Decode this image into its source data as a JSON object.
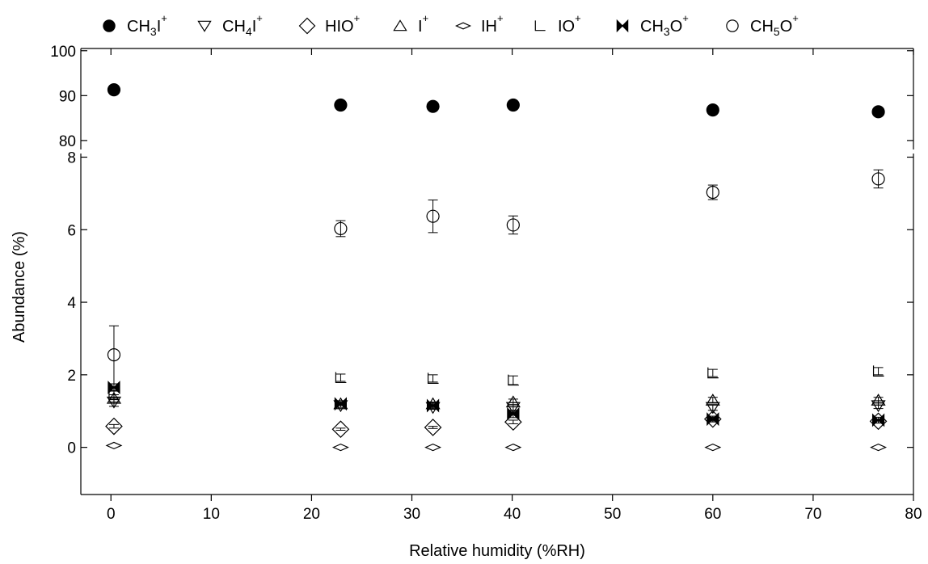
{
  "chart_data": {
    "type": "scatter",
    "xlabel": "Relative humidity (%RH)",
    "ylabel": "Abundance (%)",
    "xlim": [
      -3,
      80
    ],
    "x_ticks": [
      0,
      10,
      20,
      30,
      40,
      50,
      60,
      70,
      80
    ],
    "upper_panel": {
      "ylim": [
        78,
        100.5
      ],
      "y_ticks": [
        80,
        90,
        100
      ]
    },
    "lower_panel": {
      "ylim": [
        -1.3,
        8.1
      ],
      "y_ticks": [
        0,
        2,
        4,
        6,
        8
      ]
    },
    "grid": false,
    "legend_placement": "top",
    "legend": [
      {
        "key": "CH3I",
        "base": "CH",
        "sub": "3",
        "tail": "I",
        "sup": "+",
        "marker": "filled-circle"
      },
      {
        "key": "CH4I",
        "base": "CH",
        "sub": "4",
        "tail": "I",
        "sup": "+",
        "marker": "triangle-down"
      },
      {
        "key": "HIO",
        "base": "HIO",
        "sub": "",
        "tail": "",
        "sup": "+",
        "marker": "diamond"
      },
      {
        "key": "I",
        "base": "I",
        "sub": "",
        "tail": "",
        "sup": "+",
        "marker": "triangle-up"
      },
      {
        "key": "IH",
        "base": "IH",
        "sub": "",
        "tail": "",
        "sup": "+",
        "marker": "flat-diamond"
      },
      {
        "key": "IO",
        "base": "IO",
        "sub": "",
        "tail": "",
        "sup": "+",
        "marker": "corner"
      },
      {
        "key": "CH3O",
        "base": "CH",
        "sub": "3",
        "tail": "O",
        "sup": "+",
        "marker": "bowtie"
      },
      {
        "key": "CH5O",
        "base": "CH",
        "sub": "5",
        "tail": "O",
        "sup": "+",
        "marker": "open-circle"
      }
    ],
    "series": [
      {
        "key": "CH3I",
        "marker": "filled-circle",
        "panel": "upper",
        "points": [
          [
            0.3,
            91.3,
            0
          ],
          [
            22.9,
            87.9,
            0
          ],
          [
            32.1,
            87.6,
            0
          ],
          [
            40.1,
            87.9,
            0
          ],
          [
            60.0,
            86.8,
            0
          ],
          [
            76.5,
            86.4,
            0
          ]
        ]
      },
      {
        "key": "CH4I",
        "marker": "triangle-down",
        "panel": "lower",
        "points": [
          [
            0.3,
            1.25,
            0.12
          ],
          [
            22.9,
            1.15,
            0.05
          ],
          [
            32.1,
            1.1,
            0.05
          ],
          [
            40.1,
            1.1,
            0.08
          ],
          [
            60.0,
            1.1,
            0.08
          ],
          [
            76.5,
            1.15,
            0.08
          ]
        ]
      },
      {
        "key": "HIO",
        "marker": "diamond",
        "panel": "lower",
        "points": [
          [
            0.3,
            0.58,
            0.05
          ],
          [
            22.9,
            0.5,
            0.03
          ],
          [
            32.1,
            0.55,
            0.03
          ],
          [
            40.1,
            0.7,
            0.05
          ],
          [
            60.0,
            0.78,
            0.05
          ],
          [
            76.5,
            0.72,
            0.05
          ]
        ]
      },
      {
        "key": "I",
        "marker": "triangle-up",
        "panel": "lower",
        "points": [
          [
            0.3,
            1.35,
            0.1
          ],
          [
            22.9,
            1.2,
            0.05
          ],
          [
            32.1,
            1.2,
            0.05
          ],
          [
            40.1,
            1.25,
            0.08
          ],
          [
            60.0,
            1.3,
            0.08
          ],
          [
            76.5,
            1.3,
            0.08
          ]
        ]
      },
      {
        "key": "IH",
        "marker": "flat-diamond",
        "panel": "lower",
        "points": [
          [
            0.3,
            0.05,
            0
          ],
          [
            22.9,
            0.0,
            0
          ],
          [
            32.1,
            0.0,
            0
          ],
          [
            40.1,
            0.0,
            0
          ],
          [
            60.0,
            0.0,
            0
          ],
          [
            76.5,
            0.0,
            0
          ]
        ]
      },
      {
        "key": "IO",
        "marker": "corner",
        "panel": "lower",
        "points": [
          [
            0.3,
            1.45,
            0.12
          ],
          [
            22.9,
            1.92,
            0.1
          ],
          [
            32.1,
            1.9,
            0.1
          ],
          [
            40.1,
            1.85,
            0.12
          ],
          [
            60.0,
            2.05,
            0.1
          ],
          [
            76.5,
            2.1,
            0.1
          ]
        ]
      },
      {
        "key": "CH3O",
        "marker": "bowtie",
        "panel": "lower",
        "points": [
          [
            0.3,
            1.65,
            0.1
          ],
          [
            22.9,
            1.2,
            0.05
          ],
          [
            32.1,
            1.15,
            0.05
          ],
          [
            40.1,
            0.92,
            0.1
          ],
          [
            60.0,
            0.78,
            0.08
          ],
          [
            76.5,
            0.75,
            0.08
          ]
        ]
      },
      {
        "key": "CH5O",
        "marker": "open-circle",
        "panel": "lower",
        "points": [
          [
            0.3,
            2.55,
            0.8
          ],
          [
            22.9,
            6.03,
            0.22
          ],
          [
            32.1,
            6.37,
            0.45
          ],
          [
            40.1,
            6.13,
            0.25
          ],
          [
            60.0,
            7.03,
            0.2
          ],
          [
            76.5,
            7.4,
            0.25
          ]
        ]
      }
    ]
  }
}
